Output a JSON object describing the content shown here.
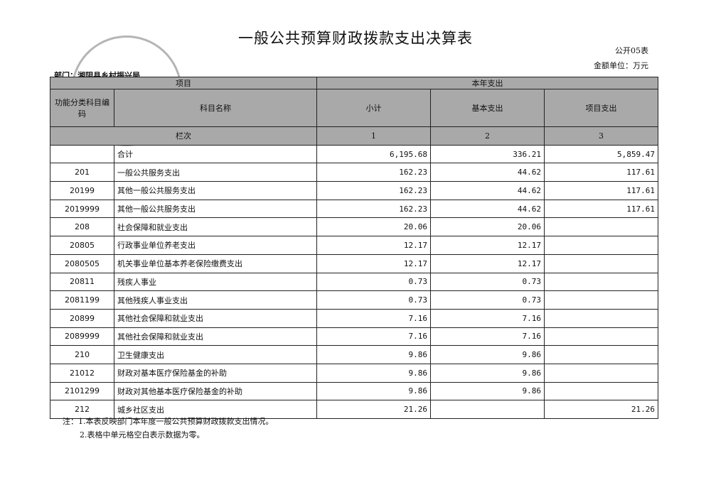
{
  "title": "一般公共预算财政拨款支出决算表",
  "form_no": "公开05表",
  "unit": "金额单位：万元",
  "department": "部门：湘阴县乡村振兴局",
  "stamp_text": "乡村振兴局",
  "header": {
    "item": "项目",
    "current_year": "本年支出",
    "code": "功能分类科目编码",
    "name": "科目名称",
    "subtotal": "小计",
    "basic": "基本支出",
    "project": "项目支出",
    "col_label": "栏次",
    "col1": "1",
    "col2": "2",
    "col3": "3"
  },
  "rows": [
    {
      "code": "",
      "name": "合计",
      "subtotal": "6,195.68",
      "basic": "336.21",
      "project": "5,859.47"
    },
    {
      "code": "201",
      "name": "一般公共服务支出",
      "subtotal": "162.23",
      "basic": "44.62",
      "project": "117.61"
    },
    {
      "code": "20199",
      "name": "其他一般公共服务支出",
      "subtotal": "162.23",
      "basic": "44.62",
      "project": "117.61"
    },
    {
      "code": "2019999",
      "name": "其他一般公共服务支出",
      "subtotal": "162.23",
      "basic": "44.62",
      "project": "117.61"
    },
    {
      "code": "208",
      "name": "社会保障和就业支出",
      "subtotal": "20.06",
      "basic": "20.06",
      "project": ""
    },
    {
      "code": "20805",
      "name": "行政事业单位养老支出",
      "subtotal": "12.17",
      "basic": "12.17",
      "project": ""
    },
    {
      "code": "2080505",
      "name": "机关事业单位基本养老保险缴费支出",
      "subtotal": "12.17",
      "basic": "12.17",
      "project": ""
    },
    {
      "code": "20811",
      "name": "残疾人事业",
      "subtotal": "0.73",
      "basic": "0.73",
      "project": ""
    },
    {
      "code": "2081199",
      "name": "其他残疾人事业支出",
      "subtotal": "0.73",
      "basic": "0.73",
      "project": ""
    },
    {
      "code": "20899",
      "name": "其他社会保障和就业支出",
      "subtotal": "7.16",
      "basic": "7.16",
      "project": ""
    },
    {
      "code": "2089999",
      "name": "其他社会保障和就业支出",
      "subtotal": "7.16",
      "basic": "7.16",
      "project": ""
    },
    {
      "code": "210",
      "name": "卫生健康支出",
      "subtotal": "9.86",
      "basic": "9.86",
      "project": ""
    },
    {
      "code": "21012",
      "name": "财政对基本医疗保险基金的补助",
      "subtotal": "9.86",
      "basic": "9.86",
      "project": ""
    },
    {
      "code": "2101299",
      "name": "财政对其他基本医疗保险基金的补助",
      "subtotal": "9.86",
      "basic": "9.86",
      "project": ""
    },
    {
      "code": "212",
      "name": "城乡社区支出",
      "subtotal": "21.26",
      "basic": "",
      "project": "21.26"
    }
  ],
  "notes": [
    "注：1.本表反映部门本年度一般公共预算财政拨款支出情况。",
    "2.表格中单元格空白表示数据为零。"
  ]
}
